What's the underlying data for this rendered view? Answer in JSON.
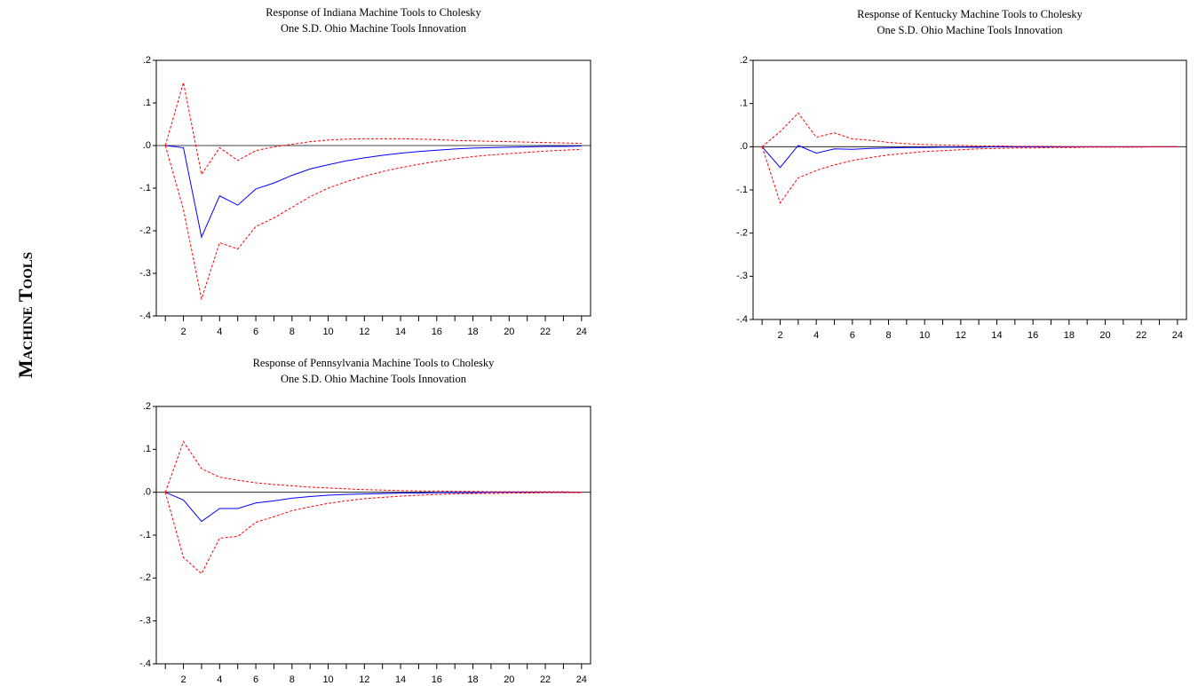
{
  "row_label": "Machine Tools",
  "chart_data": [
    {
      "type": "line",
      "title": "Response of Indiana Machine Tools to Cholesky",
      "subtitle": "One S.D. Ohio Machine Tools Innovation",
      "x": [
        1,
        2,
        3,
        4,
        5,
        6,
        7,
        8,
        9,
        10,
        11,
        12,
        13,
        14,
        15,
        16,
        17,
        18,
        19,
        20,
        21,
        22,
        23,
        24
      ],
      "xlim": [
        0.5,
        24.5
      ],
      "xticks": [
        2,
        4,
        6,
        8,
        10,
        12,
        14,
        16,
        18,
        20,
        22,
        24
      ],
      "xminor_ticks": [
        1,
        3,
        5,
        7,
        9,
        11,
        13,
        15,
        17,
        19,
        21,
        23
      ],
      "ylim": [
        -0.4,
        0.2
      ],
      "yticks": [
        {
          "value": -0.4,
          "label": "-.4"
        },
        {
          "value": -0.3,
          "label": "-.3"
        },
        {
          "value": -0.2,
          "label": "-.2"
        },
        {
          "value": -0.1,
          "label": "-.1"
        },
        {
          "value": 0,
          "label": ".0"
        },
        {
          "value": 0.1,
          "label": ".1"
        },
        {
          "value": 0.2,
          "label": ".2"
        }
      ],
      "zero_line": true,
      "series": [
        {
          "color": "#0000ff",
          "line_style": "solid",
          "values": [
            0,
            -0.005,
            -0.215,
            -0.118,
            -0.14,
            -0.102,
            -0.088,
            -0.07,
            -0.055,
            -0.045,
            -0.036,
            -0.029,
            -0.023,
            -0.018,
            -0.014,
            -0.011,
            -0.008,
            -0.006,
            -0.005,
            -0.004,
            -0.003,
            -0.002,
            -0.002,
            -0.001
          ]
        },
        {
          "color": "#ff0000",
          "line_style": "dashed",
          "values": [
            0,
            0.148,
            -0.068,
            -0.005,
            -0.035,
            -0.012,
            -0.003,
            0.003,
            0.009,
            0.013,
            0.015,
            0.016,
            0.016,
            0.016,
            0.015,
            0.014,
            0.012,
            0.011,
            0.01,
            0.009,
            0.008,
            0.007,
            0.006,
            0.005
          ]
        },
        {
          "color": "#ff0000",
          "line_style": "dashed",
          "values": [
            0,
            -0.15,
            -0.36,
            -0.228,
            -0.243,
            -0.19,
            -0.17,
            -0.145,
            -0.12,
            -0.1,
            -0.085,
            -0.072,
            -0.061,
            -0.052,
            -0.044,
            -0.037,
            -0.031,
            -0.026,
            -0.022,
            -0.019,
            -0.016,
            -0.013,
            -0.011,
            -0.009
          ]
        }
      ]
    },
    {
      "type": "line",
      "title": "Response of Kentucky Machine Tools to Cholesky",
      "subtitle": "One S.D. Ohio Machine Tools Innovation",
      "x": [
        1,
        2,
        3,
        4,
        5,
        6,
        7,
        8,
        9,
        10,
        11,
        12,
        13,
        14,
        15,
        16,
        17,
        18,
        19,
        20,
        21,
        22,
        23,
        24
      ],
      "xlim": [
        0.5,
        24.5
      ],
      "xticks": [
        2,
        4,
        6,
        8,
        10,
        12,
        14,
        16,
        18,
        20,
        22,
        24
      ],
      "xminor_ticks": [
        1,
        3,
        5,
        7,
        9,
        11,
        13,
        15,
        17,
        19,
        21,
        23
      ],
      "ylim": [
        -0.4,
        0.2
      ],
      "yticks": [
        {
          "value": -0.4,
          "label": "-.4"
        },
        {
          "value": -0.3,
          "label": "-.3"
        },
        {
          "value": -0.2,
          "label": "-.2"
        },
        {
          "value": -0.1,
          "label": "-.1"
        },
        {
          "value": 0,
          "label": ".0"
        },
        {
          "value": 0.1,
          "label": ".1"
        },
        {
          "value": 0.2,
          "label": ".2"
        }
      ],
      "zero_line": true,
      "series": [
        {
          "color": "#0000ff",
          "line_style": "solid",
          "values": [
            0,
            -0.048,
            0.003,
            -0.015,
            -0.005,
            -0.006,
            -0.004,
            -0.003,
            -0.002,
            -0.002,
            -0.001,
            -0.001,
            -0.001,
            0,
            0,
            0,
            0,
            0,
            0,
            0,
            0,
            0,
            0,
            0
          ]
        },
        {
          "color": "#ff0000",
          "line_style": "dashed",
          "values": [
            0,
            0.035,
            0.078,
            0.022,
            0.032,
            0.018,
            0.015,
            0.01,
            0.007,
            0.005,
            0.004,
            0.003,
            0.002,
            0.002,
            0.001,
            0.001,
            0.001,
            0,
            0,
            0,
            0,
            0,
            0,
            0
          ]
        },
        {
          "color": "#ff0000",
          "line_style": "dashed",
          "values": [
            0,
            -0.13,
            -0.072,
            -0.055,
            -0.042,
            -0.032,
            -0.025,
            -0.019,
            -0.015,
            -0.011,
            -0.009,
            -0.007,
            -0.005,
            -0.004,
            -0.003,
            -0.003,
            -0.002,
            -0.002,
            -0.001,
            -0.001,
            -0.001,
            -0.001,
            0,
            0
          ]
        }
      ]
    },
    {
      "type": "line",
      "title": "Response of Pennsylvania Machine Tools to Cholesky",
      "subtitle": "One S.D. Ohio Machine Tools Innovation",
      "x": [
        1,
        2,
        3,
        4,
        5,
        6,
        7,
        8,
        9,
        10,
        11,
        12,
        13,
        14,
        15,
        16,
        17,
        18,
        19,
        20,
        21,
        22,
        23,
        24
      ],
      "xlim": [
        0.5,
        24.5
      ],
      "xticks": [
        2,
        4,
        6,
        8,
        10,
        12,
        14,
        16,
        18,
        20,
        22,
        24
      ],
      "xminor_ticks": [
        1,
        3,
        5,
        7,
        9,
        11,
        13,
        15,
        17,
        19,
        21,
        23
      ],
      "ylim": [
        -0.4,
        0.2
      ],
      "yticks": [
        {
          "value": -0.4,
          "label": "-.4"
        },
        {
          "value": -0.3,
          "label": "-.3"
        },
        {
          "value": -0.2,
          "label": "-.2"
        },
        {
          "value": -0.1,
          "label": "-.1"
        },
        {
          "value": 0,
          "label": ".0"
        },
        {
          "value": 0.1,
          "label": ".1"
        },
        {
          "value": 0.2,
          "label": ".2"
        }
      ],
      "zero_line": true,
      "series": [
        {
          "color": "#0000ff",
          "line_style": "solid",
          "values": [
            0,
            -0.018,
            -0.068,
            -0.038,
            -0.038,
            -0.025,
            -0.02,
            -0.014,
            -0.01,
            -0.007,
            -0.005,
            -0.004,
            -0.003,
            -0.002,
            -0.002,
            -0.001,
            -0.001,
            -0.001,
            0,
            0,
            0,
            0,
            0,
            0
          ]
        },
        {
          "color": "#ff0000",
          "line_style": "dashed",
          "values": [
            0,
            0.118,
            0.055,
            0.035,
            0.028,
            0.022,
            0.018,
            0.015,
            0.012,
            0.01,
            0.008,
            0.006,
            0.005,
            0.004,
            0.003,
            0.003,
            0.002,
            0.002,
            0.001,
            0.001,
            0.001,
            0.001,
            0.001,
            0
          ]
        },
        {
          "color": "#ff0000",
          "line_style": "dashed",
          "values": [
            0,
            -0.152,
            -0.19,
            -0.107,
            -0.103,
            -0.07,
            -0.057,
            -0.043,
            -0.034,
            -0.026,
            -0.02,
            -0.015,
            -0.012,
            -0.009,
            -0.007,
            -0.005,
            -0.004,
            -0.003,
            -0.003,
            -0.002,
            -0.002,
            -0.001,
            -0.001,
            -0.001
          ]
        }
      ]
    }
  ]
}
